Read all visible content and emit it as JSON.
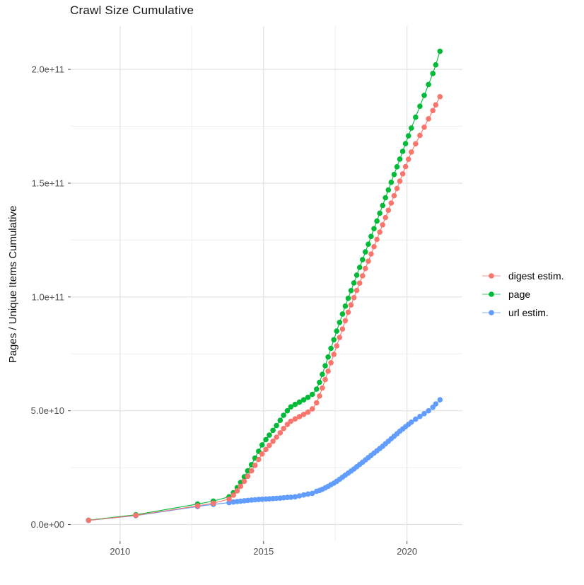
{
  "title": "Crawl Size Cumulative",
  "ylabel": "Pages / Unique Items Cumulative",
  "chart_data": {
    "type": "scatter",
    "title": "Crawl Size Cumulative",
    "xlabel": "",
    "ylabel": "Pages / Unique Items Cumulative",
    "grid": true,
    "legend_position": "right",
    "x_ticks": [
      2010,
      2015,
      2020
    ],
    "x_tick_labels": [
      "2010",
      "2015",
      "2020"
    ],
    "x_minor_ticks": [
      2012.5,
      2017.5
    ],
    "y_ticks": [
      0,
      50000000000.0,
      100000000000.0,
      150000000000.0,
      200000000000.0
    ],
    "y_tick_labels": [
      "0.0e+00",
      "5.0e+10",
      "1.0e+11",
      "1.5e+11",
      "2.0e+11"
    ],
    "y_minor_ticks": [
      25000000000.0,
      75000000000.0,
      125000000000.0,
      175000000000.0
    ],
    "x_range": [
      2008.28,
      2021.93
    ],
    "y_range_unit": [
      -7.3,
      219.0
    ],
    "y_value_unit": 1000000000.0,
    "x_unit": "year (crawl date)",
    "colors": {
      "major_grid": "#e2e2e2",
      "minor_grid": "#efefef",
      "tick": "#4d4d4d",
      "tick_label": "#4d4d4d"
    },
    "x": [
      2008.9,
      2010.55,
      2012.7,
      2013.25,
      2013.8,
      2013.95,
      2014.08,
      2014.2,
      2014.33,
      2014.45,
      2014.58,
      2014.7,
      2014.83,
      2014.95,
      2015.08,
      2015.2,
      2015.33,
      2015.45,
      2015.58,
      2015.7,
      2015.83,
      2015.95,
      2016.1,
      2016.25,
      2016.4,
      2016.55,
      2016.7,
      2016.85,
      2016.95,
      2017.05,
      2017.15,
      2017.25,
      2017.35,
      2017.45,
      2017.55,
      2017.65,
      2017.75,
      2017.85,
      2017.95,
      2018.05,
      2018.15,
      2018.25,
      2018.35,
      2018.45,
      2018.55,
      2018.65,
      2018.75,
      2018.85,
      2018.95,
      2019.05,
      2019.15,
      2019.25,
      2019.35,
      2019.45,
      2019.55,
      2019.65,
      2019.75,
      2019.85,
      2019.95,
      2020.05,
      2020.15,
      2020.3,
      2020.45,
      2020.6,
      2020.75,
      2020.9,
      2021.0,
      2021.15
    ],
    "series": [
      {
        "name": "digest estim.",
        "color": "#F8766D",
        "values_1e9": [
          1.8,
          4.0,
          8.2,
          9.4,
          11.2,
          12.9,
          14.8,
          16.8,
          19.0,
          21.2,
          23.6,
          26.0,
          28.6,
          31.0,
          33.0,
          34.8,
          36.6,
          38.4,
          40.3,
          42.2,
          44.0,
          45.4,
          46.4,
          47.4,
          48.4,
          49.4,
          50.8,
          53.5,
          56.5,
          60.0,
          63.7,
          67.4,
          71.1,
          74.8,
          78.5,
          82.2,
          85.9,
          89.6,
          93.3,
          96.5,
          99.7,
          102.9,
          106.1,
          109.3,
          112.5,
          115.7,
          118.9,
          122.1,
          125.3,
          128.5,
          131.7,
          134.9,
          138.1,
          141.3,
          144.5,
          147.7,
          150.9,
          154.1,
          157.3,
          160.5,
          163.7,
          167.3,
          171.0,
          174.6,
          178.3,
          181.9,
          184.4,
          188.0
        ]
      },
      {
        "name": "page",
        "color": "#00BA38",
        "values_1e9": [
          1.9,
          4.3,
          9.0,
          10.3,
          12.2,
          14.0,
          16.2,
          18.5,
          21.0,
          23.6,
          26.3,
          29.2,
          32.2,
          35.0,
          37.3,
          39.3,
          41.4,
          43.5,
          45.8,
          48.0,
          50.0,
          51.7,
          52.8,
          53.8,
          54.8,
          55.9,
          57.2,
          59.5,
          62.5,
          66.0,
          69.8,
          73.6,
          77.4,
          81.2,
          85.0,
          88.8,
          92.5,
          96.0,
          99.4,
          102.8,
          106.2,
          109.6,
          113.0,
          116.4,
          119.8,
          123.2,
          126.6,
          130.0,
          133.4,
          136.8,
          140.2,
          143.6,
          147.0,
          150.4,
          153.8,
          157.2,
          160.6,
          164.0,
          167.4,
          170.8,
          174.2,
          179.0,
          183.8,
          188.6,
          193.4,
          198.2,
          202.0,
          208.0
        ]
      },
      {
        "name": "url estim.",
        "color": "#619CFF",
        "values_1e9": [
          1.8,
          3.9,
          7.9,
          8.9,
          9.6,
          9.9,
          10.1,
          10.3,
          10.45,
          10.6,
          10.75,
          10.9,
          11.0,
          11.1,
          11.2,
          11.3,
          11.4,
          11.5,
          11.6,
          11.75,
          11.9,
          12.0,
          12.2,
          12.6,
          13.0,
          13.4,
          13.7,
          14.6,
          15.0,
          15.5,
          16.1,
          16.8,
          17.5,
          18.2,
          19.0,
          19.9,
          20.8,
          21.7,
          22.6,
          23.5,
          24.4,
          25.4,
          26.4,
          27.4,
          28.4,
          29.4,
          30.4,
          31.4,
          32.4,
          33.4,
          34.4,
          35.5,
          36.6,
          37.7,
          38.8,
          39.9,
          41.0,
          42.0,
          43.0,
          44.0,
          45.0,
          46.3,
          47.5,
          48.7,
          50.0,
          51.5,
          53.0,
          54.8
        ]
      }
    ]
  }
}
